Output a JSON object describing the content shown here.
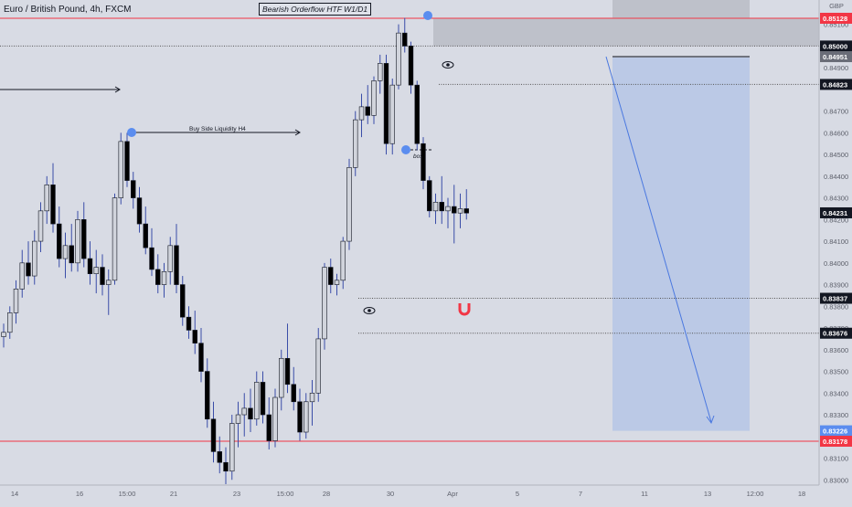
{
  "header": {
    "title": "Euro / British Pound, 4h, FXCM",
    "study_label": "Bearish Orderflow HTF W1/D1",
    "currency": "GBP"
  },
  "annotations": {
    "buy_side_liquidity": "Buy Side Liquidity H4",
    "bos": "bos"
  },
  "colors": {
    "background": "#d8dbe4",
    "candle_up": "#d1d4dc",
    "candle_down": "#000000",
    "wick": "#3a4da8",
    "resistance": "#f23645",
    "marker": "#5b8def",
    "target_zone": "#b6c6e6",
    "supply_zone": "#a9acb5"
  },
  "chart_data": {
    "type": "candlestick",
    "title": "Euro / British Pound, 4h, FXCM",
    "x_tick_labels": [
      "14",
      "16",
      "15:00",
      "21",
      "23",
      "15:00",
      "28",
      "30",
      "Apr",
      "5",
      "7",
      "11",
      "13",
      "12:00",
      "18"
    ],
    "y_tick_labels": [
      "0.85100",
      "0.84900",
      "0.84700",
      "0.84600",
      "0.84500",
      "0.84400",
      "0.84300",
      "0.84200",
      "0.84100",
      "0.84000",
      "0.83900",
      "0.83800",
      "0.83700",
      "0.83600",
      "0.83500",
      "0.83400",
      "0.83300",
      "0.83200",
      "0.83100",
      "0.83000"
    ],
    "ylim": [
      0.8295,
      0.8517
    ],
    "ohlc": [
      [
        0.8366,
        0.8372,
        0.8361,
        0.8368
      ],
      [
        0.8368,
        0.838,
        0.8365,
        0.8377
      ],
      [
        0.8377,
        0.8392,
        0.8372,
        0.8388
      ],
      [
        0.8388,
        0.8406,
        0.8384,
        0.84
      ],
      [
        0.84,
        0.841,
        0.839,
        0.8394
      ],
      [
        0.8394,
        0.8415,
        0.839,
        0.841
      ],
      [
        0.841,
        0.8428,
        0.8405,
        0.8424
      ],
      [
        0.8424,
        0.844,
        0.8418,
        0.8436
      ],
      [
        0.8436,
        0.8446,
        0.8414,
        0.8418
      ],
      [
        0.8418,
        0.8426,
        0.8398,
        0.8402
      ],
      [
        0.8402,
        0.8414,
        0.8393,
        0.8408
      ],
      [
        0.8408,
        0.8418,
        0.8396,
        0.84
      ],
      [
        0.84,
        0.8424,
        0.8396,
        0.842
      ],
      [
        0.842,
        0.8428,
        0.8398,
        0.8402
      ],
      [
        0.8402,
        0.841,
        0.839,
        0.8395
      ],
      [
        0.8395,
        0.8406,
        0.8386,
        0.8398
      ],
      [
        0.8398,
        0.8404,
        0.8385,
        0.839
      ],
      [
        0.839,
        0.8397,
        0.8376,
        0.8392
      ],
      [
        0.8392,
        0.8432,
        0.839,
        0.843
      ],
      [
        0.843,
        0.846,
        0.8427,
        0.8456
      ],
      [
        0.8456,
        0.846,
        0.8435,
        0.8438
      ],
      [
        0.8438,
        0.8442,
        0.8425,
        0.843
      ],
      [
        0.843,
        0.8435,
        0.8414,
        0.8418
      ],
      [
        0.8418,
        0.8426,
        0.8404,
        0.8407
      ],
      [
        0.8407,
        0.8416,
        0.8394,
        0.8397
      ],
      [
        0.8397,
        0.8404,
        0.8386,
        0.839
      ],
      [
        0.839,
        0.84,
        0.8384,
        0.8396
      ],
      [
        0.8396,
        0.8412,
        0.839,
        0.8408
      ],
      [
        0.8408,
        0.8418,
        0.8386,
        0.839
      ],
      [
        0.839,
        0.8394,
        0.8371,
        0.8375
      ],
      [
        0.8375,
        0.838,
        0.8365,
        0.8369
      ],
      [
        0.8369,
        0.8378,
        0.8358,
        0.8363
      ],
      [
        0.8363,
        0.837,
        0.8345,
        0.835
      ],
      [
        0.835,
        0.8356,
        0.8324,
        0.8328
      ],
      [
        0.8328,
        0.8336,
        0.8308,
        0.8313
      ],
      [
        0.8313,
        0.832,
        0.8303,
        0.8308
      ],
      [
        0.8308,
        0.8315,
        0.8298,
        0.8304
      ],
      [
        0.8304,
        0.833,
        0.83,
        0.8326
      ],
      [
        0.8326,
        0.8336,
        0.8315,
        0.833
      ],
      [
        0.833,
        0.834,
        0.832,
        0.8333
      ],
      [
        0.8333,
        0.8342,
        0.8322,
        0.8328
      ],
      [
        0.8328,
        0.835,
        0.8325,
        0.8345
      ],
      [
        0.8345,
        0.835,
        0.8326,
        0.833
      ],
      [
        0.833,
        0.8338,
        0.8314,
        0.8318
      ],
      [
        0.8318,
        0.8342,
        0.8315,
        0.8338
      ],
      [
        0.8338,
        0.836,
        0.8332,
        0.8356
      ],
      [
        0.8356,
        0.8372,
        0.834,
        0.8344
      ],
      [
        0.8344,
        0.8352,
        0.8332,
        0.8336
      ],
      [
        0.8336,
        0.8342,
        0.8318,
        0.8322
      ],
      [
        0.8322,
        0.834,
        0.8319,
        0.8336
      ],
      [
        0.8336,
        0.8346,
        0.8325,
        0.834
      ],
      [
        0.834,
        0.837,
        0.8336,
        0.8365
      ],
      [
        0.8365,
        0.84,
        0.836,
        0.8398
      ],
      [
        0.8398,
        0.8402,
        0.8386,
        0.839
      ],
      [
        0.839,
        0.8395,
        0.8385,
        0.8392
      ],
      [
        0.8392,
        0.8412,
        0.8388,
        0.841
      ],
      [
        0.841,
        0.8448,
        0.8406,
        0.8444
      ],
      [
        0.8444,
        0.847,
        0.844,
        0.8466
      ],
      [
        0.8466,
        0.8478,
        0.8458,
        0.8472
      ],
      [
        0.8472,
        0.8482,
        0.8464,
        0.8468
      ],
      [
        0.8468,
        0.8486,
        0.8464,
        0.8484
      ],
      [
        0.8484,
        0.8496,
        0.8478,
        0.8492
      ],
      [
        0.8492,
        0.8496,
        0.845,
        0.8455
      ],
      [
        0.8455,
        0.8485,
        0.845,
        0.8482
      ],
      [
        0.8482,
        0.851,
        0.848,
        0.8506
      ],
      [
        0.8506,
        0.8513,
        0.8497,
        0.85
      ],
      [
        0.85,
        0.8502,
        0.8478,
        0.8482
      ],
      [
        0.8482,
        0.8484,
        0.8452,
        0.8455
      ],
      [
        0.8455,
        0.8458,
        0.8434,
        0.8438
      ],
      [
        0.8438,
        0.844,
        0.8421,
        0.8424
      ],
      [
        0.8424,
        0.8432,
        0.8418,
        0.8428
      ],
      [
        0.8428,
        0.844,
        0.8418,
        0.8424
      ],
      [
        0.8424,
        0.843,
        0.8416,
        0.8426
      ],
      [
        0.8426,
        0.8436,
        0.8409,
        0.8423
      ],
      [
        0.8423,
        0.8432,
        0.8416,
        0.8425
      ],
      [
        0.8425,
        0.8434,
        0.842,
        0.8423
      ]
    ],
    "price_levels": [
      {
        "label": "0.85128",
        "value": 0.85128,
        "style": "red"
      },
      {
        "label": "0.85000",
        "value": 0.85,
        "style": "dark"
      },
      {
        "label": "0.84951",
        "value": 0.84951,
        "style": "gray"
      },
      {
        "label": "0.84823",
        "value": 0.84823,
        "style": "dark"
      },
      {
        "label": "0.84231",
        "value": 0.84231,
        "style": "dark"
      },
      {
        "label": "0.83837",
        "value": 0.83837,
        "style": "dark"
      },
      {
        "label": "0.83676",
        "value": 0.83676,
        "style": "dark"
      },
      {
        "label": "0.83226",
        "value": 0.83226,
        "style": "blue"
      },
      {
        "label": "0.83178",
        "value": 0.83178,
        "style": "red"
      }
    ],
    "supply_zone": [
      0.85,
      0.85128
    ],
    "target_zone": [
      0.83226,
      0.84951
    ],
    "grid": false
  }
}
